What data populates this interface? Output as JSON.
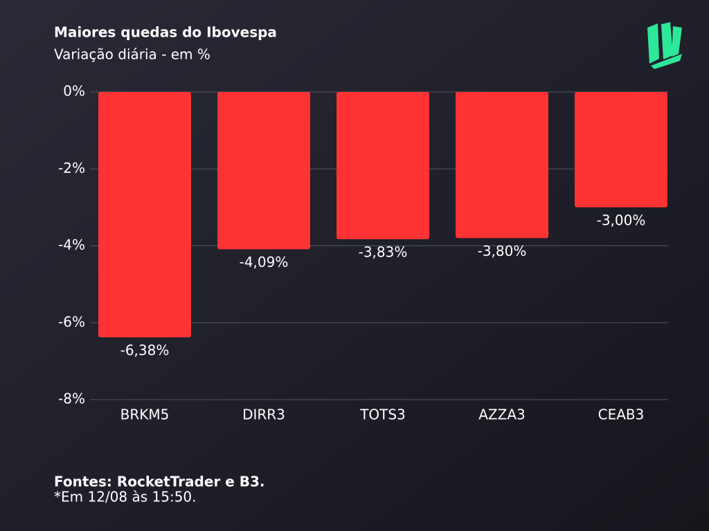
{
  "chart_data": {
    "type": "bar",
    "title": "Maiores quedas do Ibovespa",
    "subtitle": "Variação diária - em %",
    "categories": [
      "BRKM5",
      "DIRR3",
      "TOTS3",
      "AZZA3",
      "CEAB3"
    ],
    "values": [
      -6.38,
      -4.09,
      -3.83,
      -3.8,
      -3.0
    ],
    "value_labels": [
      "-6,38%",
      "-4,09%",
      "-3,83%",
      "-3,80%",
      "-3,00%"
    ],
    "color": "#ff3333",
    "ylim": [
      -8,
      0
    ],
    "yticks": [
      {
        "value": 0,
        "label": "0%"
      },
      {
        "value": -2,
        "label": "-2%"
      },
      {
        "value": -4,
        "label": "-4%"
      },
      {
        "value": -6,
        "label": "-6%"
      },
      {
        "value": -8,
        "label": "-8%"
      }
    ],
    "grid": true,
    "source": "Fontes: RocketTrader e B3.",
    "note": "*Em 12/08 às 15:50."
  }
}
